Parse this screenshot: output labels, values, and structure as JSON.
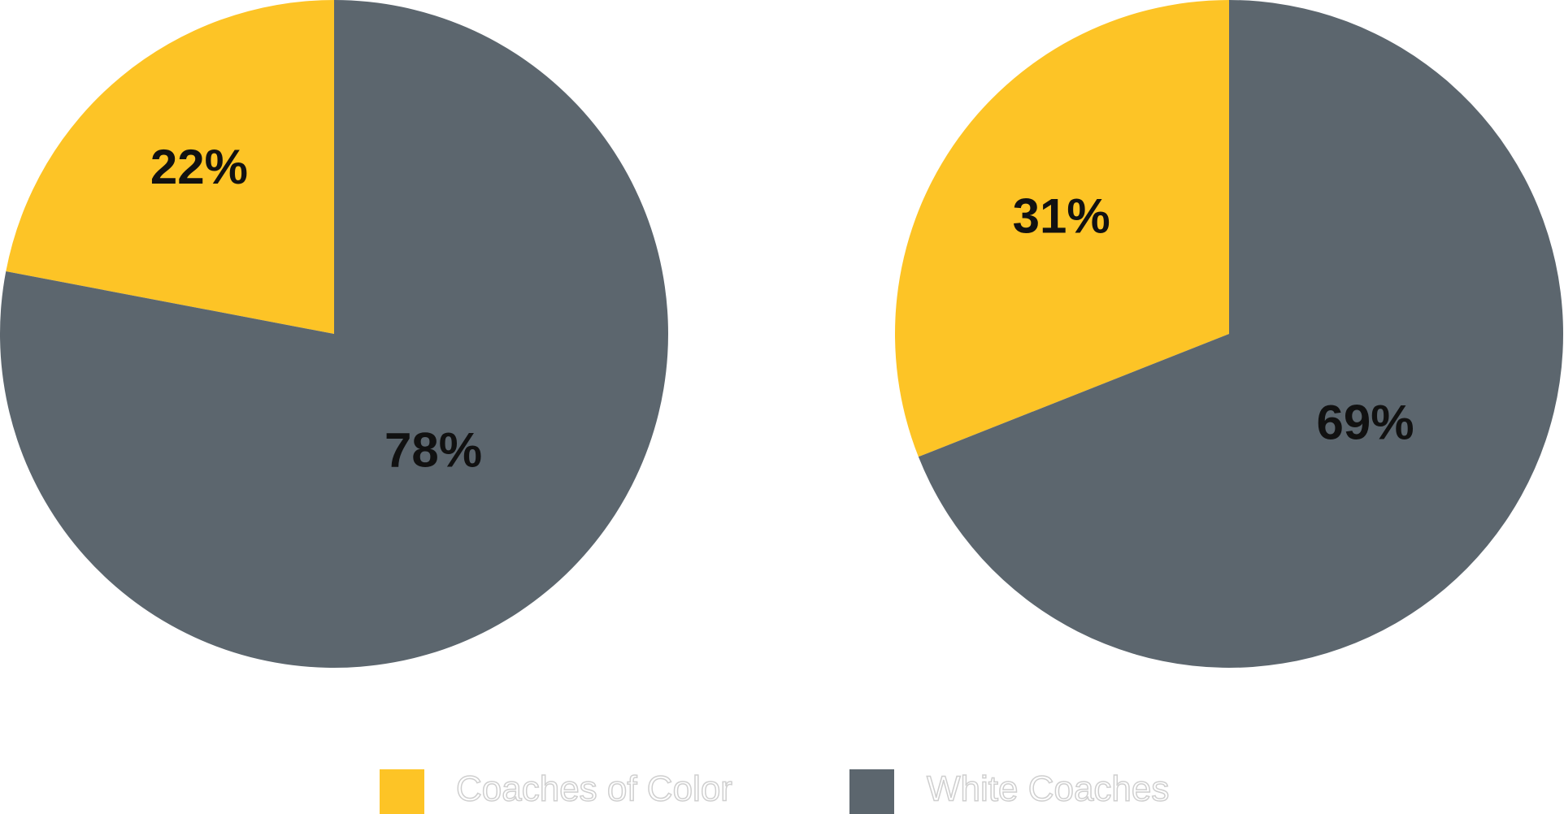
{
  "legend": {
    "labels": [
      "Coaches of Color",
      "White Coaches"
    ],
    "colors": [
      "#fdc426",
      "#5c666e"
    ]
  },
  "chart_data": [
    {
      "type": "pie",
      "values": [
        22,
        78
      ],
      "value_labels": [
        "22%",
        "78%"
      ]
    },
    {
      "type": "pie",
      "values": [
        31,
        69
      ],
      "value_labels": [
        "31%",
        "69%"
      ]
    }
  ]
}
